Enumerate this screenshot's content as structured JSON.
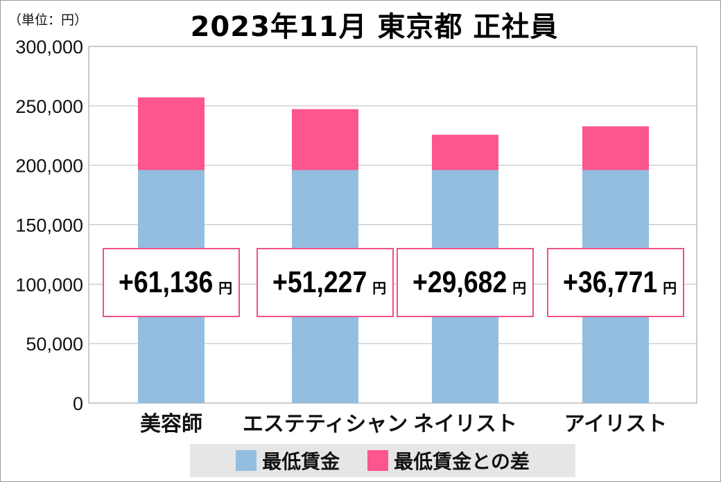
{
  "chart_data": {
    "type": "bar",
    "stacked": true,
    "title": "2023年11月 東京都 正社員",
    "unit_label": "（単位：円）",
    "categories": [
      "美容師",
      "エステティシャン",
      "ネイリスト",
      "アイリスト"
    ],
    "series": [
      {
        "name": "最低賃金",
        "color": "#93bedf",
        "values": [
          196000,
          196000,
          196000,
          196000
        ]
      },
      {
        "name": "最低賃金との差",
        "color": "#fd558d",
        "values": [
          61136,
          51227,
          29682,
          36771
        ]
      }
    ],
    "data_labels": [
      "+61,136",
      "+51,227",
      "+29,682",
      "+36,771"
    ],
    "data_label_unit": "円",
    "yticks": [
      "0",
      "50,000",
      "100,000",
      "150,000",
      "200,000",
      "250,000",
      "300,000"
    ],
    "ylim": [
      0,
      300000
    ],
    "grid": true,
    "legend_position": "bottom"
  }
}
